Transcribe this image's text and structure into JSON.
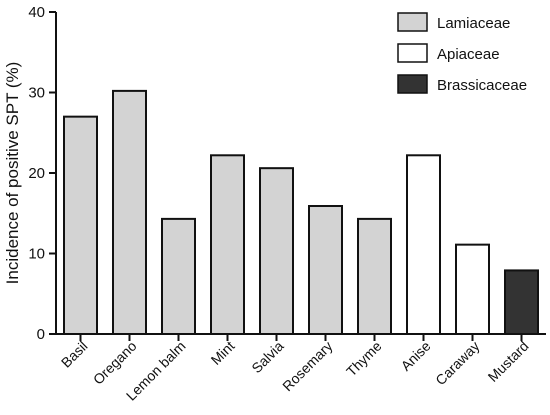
{
  "chart_data": {
    "type": "bar",
    "ylabel": "Incidence of positive SPT (%)",
    "xlabel": "",
    "ylim": [
      0,
      40
    ],
    "yticks": [
      0,
      10,
      20,
      30,
      40
    ],
    "grid": false,
    "legend_position": "top-right",
    "categories": [
      "Basil",
      "Oregano",
      "Lemon balm",
      "Mint",
      "Salvia",
      "Rosemary",
      "Thyme",
      "Anise",
      "Caraway",
      "Mustard"
    ],
    "values": [
      27.0,
      30.2,
      14.3,
      22.2,
      20.6,
      15.9,
      14.3,
      22.2,
      11.1,
      7.9
    ],
    "groups": [
      "Lamiaceae",
      "Lamiaceae",
      "Lamiaceae",
      "Lamiaceae",
      "Lamiaceae",
      "Lamiaceae",
      "Lamiaceae",
      "Apiaceae",
      "Apiaceae",
      "Brassicaceae"
    ],
    "legend": [
      {
        "name": "Lamiaceae",
        "color": "#d3d3d3"
      },
      {
        "name": "Apiaceae",
        "color": "#ffffff"
      },
      {
        "name": "Brassicaceae",
        "color": "#333333"
      }
    ]
  }
}
